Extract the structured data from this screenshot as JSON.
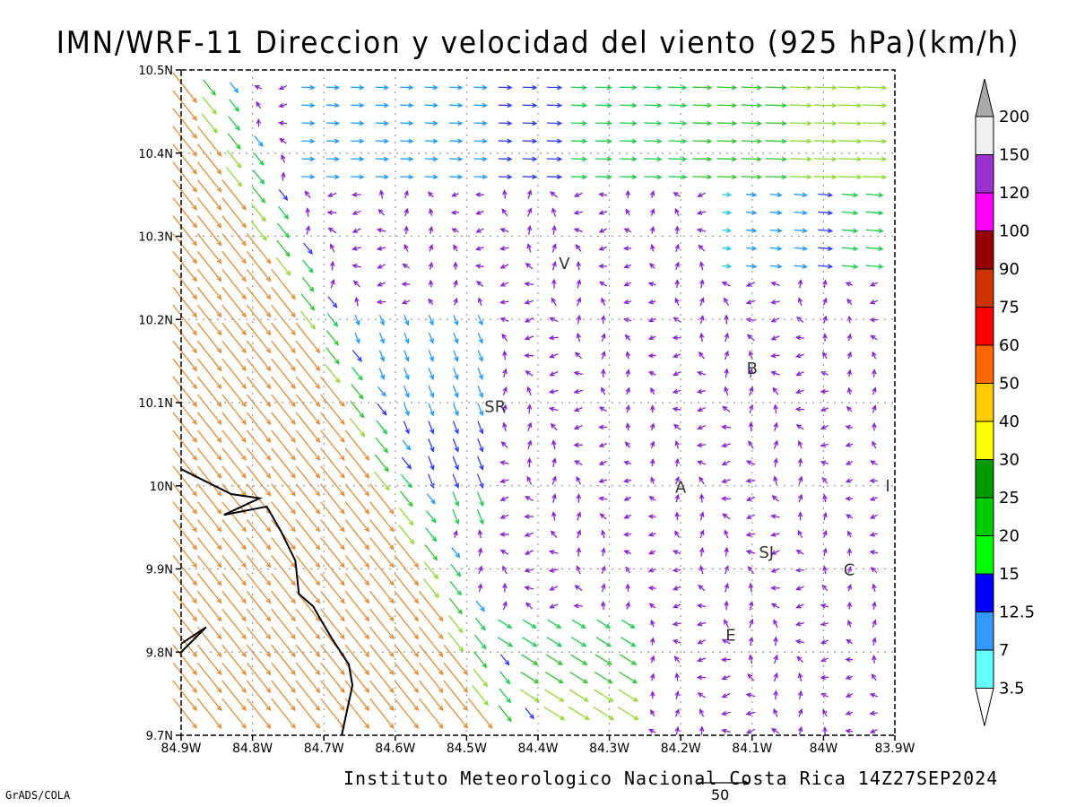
{
  "title": "IMN/WRF-11 Direccion y velocidad del viento (925 hPa)(km/h)",
  "credit": "Instituto Meteorologico Nacional Costa Rica 14Z27SEP2024",
  "software": "GrADS/COLA",
  "reference_vector": {
    "label": "50"
  },
  "map": {
    "lon_range": [
      -84.9,
      -83.9
    ],
    "lat_range": [
      9.7,
      10.5
    ],
    "x_ticks": [
      {
        "lon": -84.9,
        "label": "84.9W"
      },
      {
        "lon": -84.8,
        "label": "84.8W"
      },
      {
        "lon": -84.7,
        "label": "84.7W"
      },
      {
        "lon": -84.6,
        "label": "84.6W"
      },
      {
        "lon": -84.5,
        "label": "84.5W"
      },
      {
        "lon": -84.4,
        "label": "84.4W"
      },
      {
        "lon": -84.3,
        "label": "84.3W"
      },
      {
        "lon": -84.2,
        "label": "84.2W"
      },
      {
        "lon": -84.1,
        "label": "84.1W"
      },
      {
        "lon": -84.0,
        "label": "84W"
      },
      {
        "lon": -83.9,
        "label": "83.9W"
      }
    ],
    "y_ticks": [
      {
        "lat": 10.5,
        "label": "10.5N"
      },
      {
        "lat": 10.4,
        "label": "10.4N"
      },
      {
        "lat": 10.3,
        "label": "10.3N"
      },
      {
        "lat": 10.2,
        "label": "10.2N"
      },
      {
        "lat": 10.1,
        "label": "10.1N"
      },
      {
        "lat": 10.0,
        "label": "10N"
      },
      {
        "lat": 9.9,
        "label": "9.9N"
      },
      {
        "lat": 9.8,
        "label": "9.8N"
      },
      {
        "lat": 9.7,
        "label": "9.7N"
      }
    ],
    "place_labels": [
      {
        "text": "V",
        "lon": -84.363,
        "lat": 10.267
      },
      {
        "text": "SR",
        "lon": -84.46,
        "lat": 10.095
      },
      {
        "text": "B",
        "lon": -84.1,
        "lat": 10.141
      },
      {
        "text": "A",
        "lon": -84.2,
        "lat": 9.998
      },
      {
        "text": "I",
        "lon": -83.91,
        "lat": 10.0
      },
      {
        "text": "SJ",
        "lon": -84.08,
        "lat": 9.92
      },
      {
        "text": "C",
        "lon": -83.964,
        "lat": 9.899
      },
      {
        "text": "E",
        "lon": -84.13,
        "lat": 9.82
      }
    ],
    "coastline": [
      [
        -84.9,
        10.02
      ],
      [
        -84.83,
        9.99
      ],
      [
        -84.79,
        9.985
      ],
      [
        -84.84,
        9.965
      ],
      [
        -84.78,
        9.975
      ],
      [
        -84.76,
        9.945
      ],
      [
        -84.74,
        9.91
      ],
      [
        -84.735,
        9.87
      ],
      [
        -84.715,
        9.855
      ],
      [
        -84.705,
        9.84
      ],
      [
        -84.69,
        9.818
      ],
      [
        -84.665,
        9.785
      ],
      [
        -84.66,
        9.76
      ],
      [
        -84.665,
        9.74
      ],
      [
        -84.67,
        9.72
      ],
      [
        -84.675,
        9.7
      ]
    ],
    "coastline_bay": [
      [
        -84.9,
        9.81
      ],
      [
        -84.865,
        9.83
      ],
      [
        -84.9,
        9.8
      ]
    ]
  },
  "colorbar": {
    "labels": [
      "200",
      "150",
      "120",
      "100",
      "90",
      "75",
      "60",
      "50",
      "40",
      "30",
      "25",
      "20",
      "15",
      "12.5",
      "7",
      "3.5"
    ],
    "colors": [
      "#a9a9a9",
      "#f0f0f0",
      "#9932cc",
      "#ff00ff",
      "#990000",
      "#cc3300",
      "#ff0000",
      "#ff6600",
      "#ffcc00",
      "#ffff00",
      "#009900",
      "#00cc00",
      "#00ff00",
      "#0000ff",
      "#3399ff",
      "#66ffff"
    ]
  }
}
